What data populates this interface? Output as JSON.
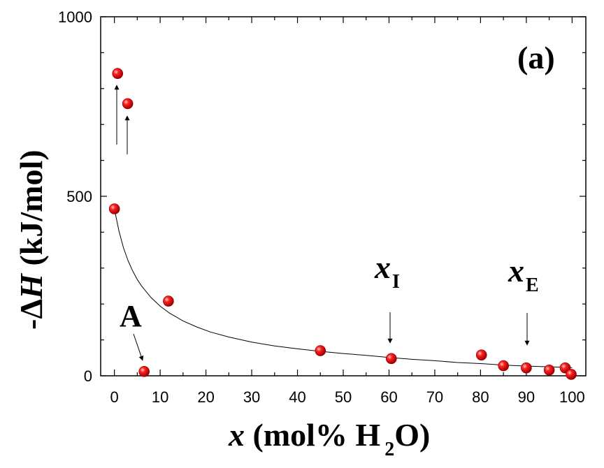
{
  "chart_data": {
    "type": "scatter",
    "panel_label": "(a)",
    "xlabel": {
      "var": "x",
      "rest": " (mol% H",
      "sub": "2",
      "end": "O)"
    },
    "ylabel": {
      "prefix": "-Δ",
      "var": "H",
      "rest": " (kJ/mol)"
    },
    "xlim": [
      -3,
      103
    ],
    "ylim": [
      0,
      1000
    ],
    "x_ticks": [
      0,
      10,
      20,
      30,
      40,
      50,
      60,
      70,
      80,
      90,
      100
    ],
    "y_ticks": [
      0,
      500,
      1000
    ],
    "y_minor_step": 100,
    "x_minor_step": 5,
    "marker_color": "#e00000",
    "points": [
      {
        "x": 0.0,
        "y": 465
      },
      {
        "x": 0.7,
        "y": 842
      },
      {
        "x": 2.9,
        "y": 758
      },
      {
        "x": 6.5,
        "y": 12
      },
      {
        "x": 11.8,
        "y": 208
      },
      {
        "x": 45.0,
        "y": 70
      },
      {
        "x": 60.5,
        "y": 48
      },
      {
        "x": 80.2,
        "y": 58
      },
      {
        "x": 85.0,
        "y": 28
      },
      {
        "x": 90.0,
        "y": 22
      },
      {
        "x": 95.0,
        "y": 16
      },
      {
        "x": 98.5,
        "y": 22
      },
      {
        "x": 99.8,
        "y": 4
      }
    ],
    "fit_curve": {
      "x": [
        0,
        1,
        2,
        3,
        4,
        5,
        6,
        8,
        10,
        12,
        15,
        18,
        21,
        25,
        30,
        35,
        40,
        45,
        50,
        55,
        60,
        65,
        70,
        75,
        80,
        85,
        90,
        95,
        100
      ],
      "y": [
        465,
        403,
        356,
        320,
        292,
        268,
        249,
        218,
        194,
        175,
        153,
        136,
        122,
        108,
        94,
        83,
        75,
        68,
        62,
        57,
        51,
        46,
        42,
        37,
        34,
        30,
        27,
        25,
        23
      ]
    },
    "annotations": [
      {
        "text": "A",
        "sub": ""
      },
      {
        "text": "x",
        "sub": "I"
      },
      {
        "text": "x",
        "sub": "E"
      }
    ]
  }
}
